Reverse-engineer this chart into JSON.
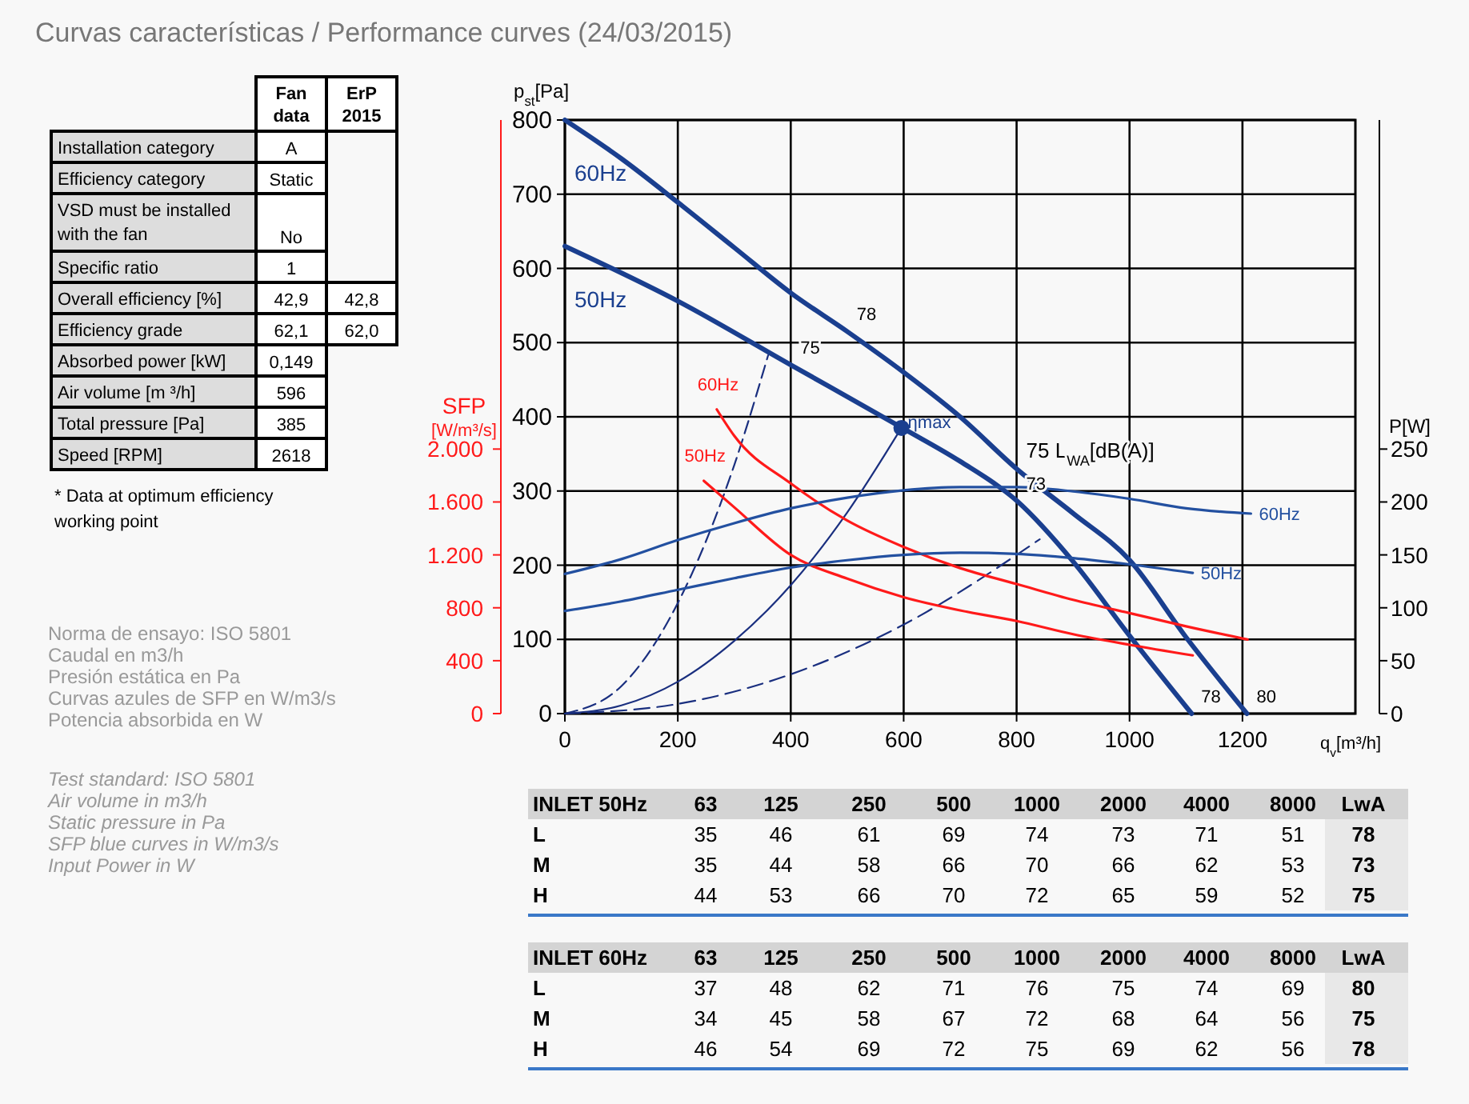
{
  "chart_data": [
    {
      "type": "line",
      "title": "Curvas características / Performance curves (24/03/2015)",
      "xlabel": "q$_{v}$[m³/h]",
      "ylabel": "p$_{st}$[Pa]",
      "y2label": "SFP [W/m³/s]",
      "y3label": "P[W]",
      "xlim": [
        0,
        1400
      ],
      "xticks": [
        0,
        200,
        400,
        600,
        800,
        1000,
        1200
      ],
      "ylim": [
        0,
        800
      ],
      "yticks": [
        0,
        100,
        200,
        300,
        400,
        500,
        600,
        700,
        800
      ],
      "y2lim": [
        0,
        4488
      ],
      "y2ticks": [
        0,
        400,
        800,
        {
          "value": 1200,
          "label": "1.200"
        },
        {
          "value": 1600,
          "label": "1.600"
        },
        {
          "value": 2000,
          "label": "2.000"
        }
      ],
      "y3lim": [
        0,
        561
      ],
      "y3ticks": [
        0,
        50,
        100,
        150,
        200,
        250
      ],
      "grid": true,
      "series": [
        {
          "name": "60Hz",
          "axis": "y",
          "color": "#1a3f8f",
          "x": [
            0,
            100,
            200,
            300,
            400,
            500,
            600,
            700,
            800,
            900,
            1000,
            1100,
            1208
          ],
          "values": [
            800,
            748,
            689,
            628,
            567,
            515,
            460,
            400,
            330,
            270,
            207,
            103,
            0
          ]
        },
        {
          "name": "50Hz",
          "axis": "y",
          "color": "#1a3f8f",
          "x": [
            0,
            200,
            400,
            600,
            700,
            800,
            900,
            1000,
            1110
          ],
          "values": [
            630,
            556,
            470,
            384,
            340,
            287,
            205,
            105,
            0
          ]
        },
        {
          "axis": "y",
          "color": "#1a2f7f",
          "line_style": "dashed",
          "x": [
            0,
            100,
            200,
            300,
            360
          ],
          "values": [
            0,
            37,
            149,
            335,
            483
          ]
        },
        {
          "axis": "y",
          "color": "#1a2f7f",
          "line_style": "solid",
          "x": [
            0,
            100,
            200,
            300,
            400,
            500,
            596
          ],
          "values": [
            0,
            11,
            43,
            98,
            173,
            271,
            385
          ]
        },
        {
          "axis": "y",
          "color": "#1a2f7f",
          "line_style": "dashed",
          "x": [
            0,
            200,
            400,
            600,
            841
          ],
          "values": [
            0,
            13,
            53,
            120,
            235
          ]
        },
        {
          "name": "60Hz",
          "axis": "y2",
          "color": "#ff1a1a",
          "x": [
            269,
            300,
            400,
            500,
            600,
            700,
            800,
            900,
            1000,
            1100,
            1209
          ],
          "values": [
            2300,
            2100,
            1740,
            1460,
            1260,
            1100,
            980,
            860,
            760,
            660,
            560
          ]
        },
        {
          "name": "50Hz",
          "axis": "y2",
          "color": "#ff1a1a",
          "x": [
            246,
            300,
            400,
            500,
            600,
            700,
            800,
            900,
            1000,
            1112
          ],
          "values": [
            1760,
            1560,
            1200,
            1020,
            880,
            780,
            700,
            600,
            520,
            440
          ]
        },
        {
          "name": "60Hz",
          "axis": "y3",
          "color": "#2350a0",
          "x": [
            0,
            100,
            200,
            300,
            400,
            500,
            600,
            700,
            800,
            900,
            1000,
            1100,
            1215
          ],
          "values": [
            132,
            146,
            164,
            180,
            194,
            204,
            211,
            214,
            214,
            210,
            203,
            194,
            189
          ]
        },
        {
          "name": "50Hz",
          "axis": "y3",
          "color": "#2350a0",
          "x": [
            0,
            100,
            200,
            300,
            400,
            500,
            600,
            700,
            800,
            900,
            1000,
            1112
          ],
          "values": [
            97,
            106,
            117,
            128,
            138,
            145,
            150,
            152,
            151,
            147,
            141,
            133
          ]
        },
        {
          "type": "scatter",
          "name": "ηmax",
          "axis": "y",
          "color": "#1a3f8f",
          "marker": "circle",
          "x": [
            596
          ],
          "values": [
            385
          ]
        }
      ],
      "annotations": [
        {
          "text": "78",
          "x": 500,
          "y": 515
        },
        {
          "text": "75",
          "x": 400,
          "y": 470
        },
        {
          "text": "73",
          "x": 800,
          "y": 287
        },
        {
          "text": "75 L$_{WA}$[dB(A)]",
          "x": 800,
          "y": 330
        },
        {
          "text": "78",
          "x": 1110,
          "y": 0
        },
        {
          "text": "80",
          "x": 1208,
          "y": 0
        }
      ]
    },
    {
      "type": "other",
      "categories": [
        "Fan data",
        "ErP 2015"
      ],
      "y_categories": [
        "Installation category",
        "Efficiency category",
        "VSD must be installed with the fan",
        "Specific ratio",
        "Overall efficiency [%]",
        "Efficiency grade",
        "Absorbed power [kW]",
        "Air volume [m ³/h]",
        "Total pressure [Pa]",
        "Speed [RPM]"
      ],
      "cell_labels": [
        [
          "A",
          null
        ],
        [
          "Static",
          null
        ],
        [
          "No",
          null
        ],
        [
          "1",
          null
        ],
        [
          "42,9",
          "42,8"
        ],
        [
          "62,1",
          "62,0"
        ],
        [
          "0,149",
          null
        ],
        [
          "596",
          null
        ],
        [
          "385",
          null
        ],
        [
          "2618",
          null
        ]
      ],
      "annotations": [
        "* Data at optimum efficiency working point"
      ]
    },
    {
      "type": "other",
      "annotations": [
        "Norma de ensayo: ISO 5801",
        "Caudal en m3/h",
        "Presión estática en Pa",
        "Curvas azules de SFP en W/m3/s",
        "Potencia absorbida en W"
      ]
    },
    {
      "type": "other",
      "annotations": [
        "Test standard: ISO 5801",
        "Air volume in m3/h",
        "Static pressure in Pa",
        "SFP blue curves in W/m3/s",
        "Input Power in W"
      ]
    },
    {
      "type": "heatmap",
      "title": "INLET 50Hz",
      "categories": [
        "63",
        "125",
        "250",
        "500",
        "1000",
        "2000",
        "4000",
        "8000",
        "LwA"
      ],
      "y_categories": [
        "L",
        "M",
        "H"
      ],
      "data_labels": true,
      "cells": [
        [
          35,
          46,
          61,
          69,
          74,
          73,
          71,
          51,
          78
        ],
        [
          35,
          44,
          58,
          66,
          70,
          66,
          62,
          53,
          73
        ],
        [
          44,
          53,
          66,
          70,
          72,
          65,
          59,
          52,
          75
        ]
      ]
    },
    {
      "type": "heatmap",
      "title": "INLET 60Hz",
      "categories": [
        "63",
        "125",
        "250",
        "500",
        "1000",
        "2000",
        "4000",
        "8000",
        "LwA"
      ],
      "y_categories": [
        "L",
        "M",
        "H"
      ],
      "data_labels": true,
      "cells": [
        [
          37,
          48,
          62,
          71,
          76,
          75,
          74,
          69,
          80
        ],
        [
          34,
          45,
          58,
          67,
          72,
          68,
          64,
          56,
          75
        ],
        [
          46,
          54,
          69,
          72,
          75,
          69,
          62,
          56,
          78
        ]
      ]
    }
  ]
}
